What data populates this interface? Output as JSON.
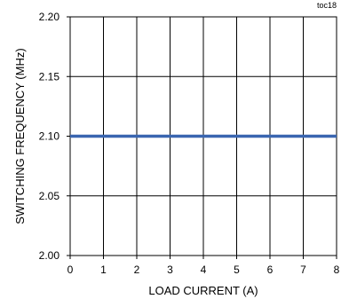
{
  "chart_data": {
    "type": "line",
    "corner_label": "toc18",
    "title": "",
    "xlabel": "LOAD CURRENT (A)",
    "ylabel": "SWITCHING FREQUENCY (MHz)",
    "xlim": [
      0,
      8
    ],
    "ylim": [
      2.0,
      2.2
    ],
    "x_ticks": [
      "0",
      "1",
      "2",
      "3",
      "4",
      "5",
      "6",
      "7",
      "8"
    ],
    "y_ticks": [
      "2.00",
      "2.05",
      "2.10",
      "2.15",
      "2.20"
    ],
    "grid": true,
    "legend": "none",
    "series": [
      {
        "x": [
          0,
          1,
          2,
          3,
          4,
          5,
          6,
          7,
          8
        ],
        "y": [
          2.1,
          2.1,
          2.1,
          2.1,
          2.1,
          2.1,
          2.1,
          2.1,
          2.1
        ],
        "color": "#3a66b0"
      }
    ]
  }
}
